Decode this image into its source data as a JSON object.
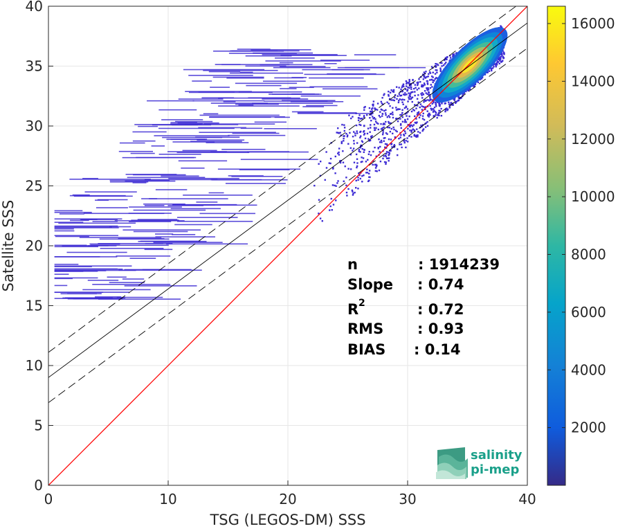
{
  "chart_data": {
    "type": "heatmap",
    "title": "",
    "xlabel": "TSG (LEGOS-DM) SSS",
    "ylabel": "Satellite SSS",
    "xlim": [
      0,
      40
    ],
    "ylim": [
      0,
      40
    ],
    "xticks": [
      0,
      10,
      20,
      30,
      40
    ],
    "yticks": [
      0,
      5,
      10,
      15,
      20,
      25,
      30,
      35,
      40
    ],
    "grid": true,
    "colormap": "parula",
    "colorbar": {
      "min": 0,
      "max": 16600,
      "ticks": [
        2000,
        4000,
        6000,
        8000,
        10000,
        12000,
        14000,
        16000
      ]
    },
    "density_core": {
      "x": 35.2,
      "y": 35.1
    },
    "one_to_one_line": {
      "color": "#ff0000",
      "points": [
        [
          0,
          0
        ],
        [
          40,
          40
        ]
      ]
    },
    "fit_line": {
      "slope": 0.74,
      "intercept": 9.0
    },
    "fit_bounds": {
      "offset": 2.1
    },
    "stats": {
      "n_label": "n",
      "n_value": ": 1914239",
      "slope_label": "Slope",
      "slope_value": ": 0.74",
      "r2_label": "R",
      "r2_sup": "2",
      "r2_value": ": 0.72",
      "rms_label": "RMS",
      "rms_value": ": 0.93",
      "bias_label": "BIAS",
      "bias_value": ": 0.14"
    }
  },
  "logo": {
    "line1": "salinity",
    "line2": "pi-mep"
  },
  "colors": {
    "one_to_one": "#ff0000",
    "fit": "#000000",
    "low_density": "#3d2bd4",
    "logo_text": "#1aa08a"
  }
}
